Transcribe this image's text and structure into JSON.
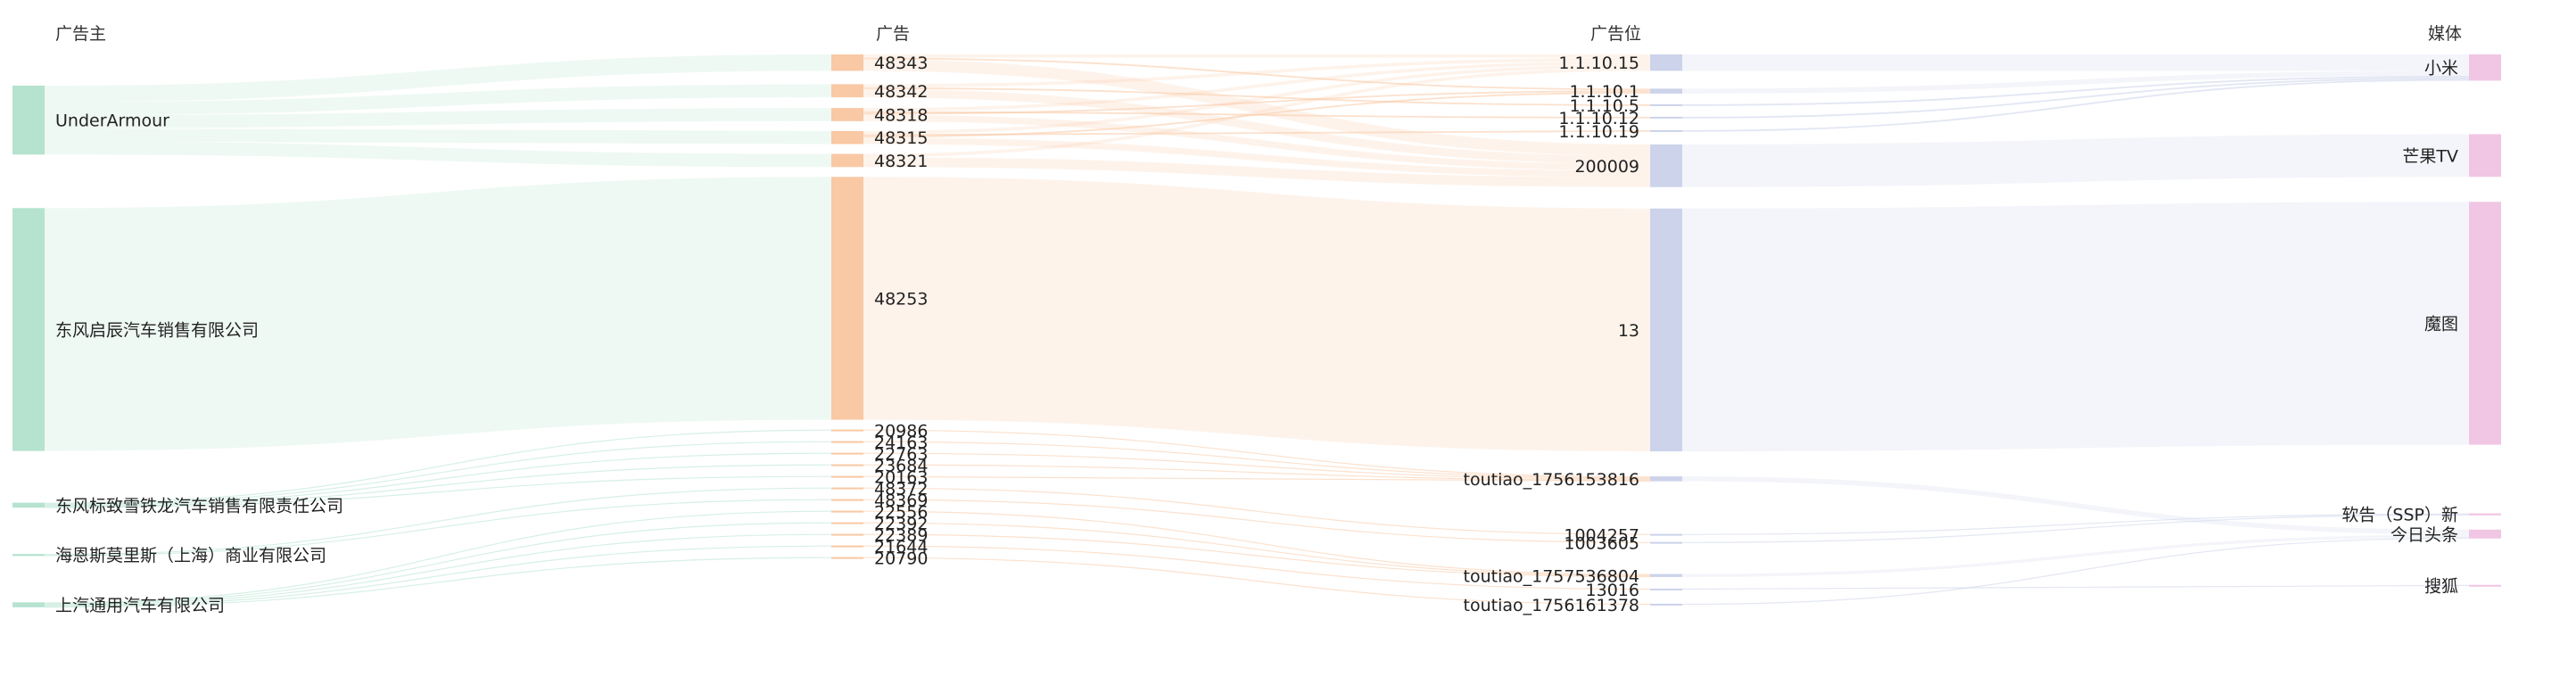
{
  "chart_data": {
    "type": "sankey",
    "title": "",
    "columns": [
      "广告主",
      "广告",
      "广告位",
      "媒体"
    ],
    "colors": {
      "advertiser": "#b5e3cf",
      "ad": "#f9c8a4",
      "slot": "#ccd3ea",
      "media": "#f0c6e4"
    },
    "nodes": [
      {
        "name": "UnderArmour",
        "level": 0
      },
      {
        "name": "东风启辰汽车销售有限公司",
        "level": 0
      },
      {
        "name": "东风标致雪铁龙汽车销售有限责任公司",
        "level": 0
      },
      {
        "name": "海恩斯莫里斯（上海）商业有限公司",
        "level": 0
      },
      {
        "name": "上汽通用汽车有限公司",
        "level": 0
      },
      {
        "name": "48343",
        "level": 1
      },
      {
        "name": "48342",
        "level": 1
      },
      {
        "name": "48318",
        "level": 1
      },
      {
        "name": "48315",
        "level": 1
      },
      {
        "name": "48321",
        "level": 1
      },
      {
        "name": "48253",
        "level": 1
      },
      {
        "name": "20986",
        "level": 1
      },
      {
        "name": "24163",
        "level": 1
      },
      {
        "name": "22763",
        "level": 1
      },
      {
        "name": "23684",
        "level": 1
      },
      {
        "name": "20163",
        "level": 1
      },
      {
        "name": "48372",
        "level": 1
      },
      {
        "name": "48369",
        "level": 1
      },
      {
        "name": "22556",
        "level": 1
      },
      {
        "name": "22392",
        "level": 1
      },
      {
        "name": "22389",
        "level": 1
      },
      {
        "name": "21644",
        "level": 1
      },
      {
        "name": "20790",
        "level": 1
      },
      {
        "name": "1.1.10.15",
        "level": 2
      },
      {
        "name": "1.1.10.1",
        "level": 2
      },
      {
        "name": "1.1.10.5",
        "level": 2
      },
      {
        "name": "1.1.10.12",
        "level": 2
      },
      {
        "name": "1.1.10.19",
        "level": 2
      },
      {
        "name": "200009",
        "level": 2
      },
      {
        "name": "13",
        "level": 2
      },
      {
        "name": "toutiao_1756153816",
        "level": 2
      },
      {
        "name": "1004257",
        "level": 2
      },
      {
        "name": "1003605",
        "level": 2
      },
      {
        "name": "toutiao_1757536804",
        "level": 2
      },
      {
        "name": "13016",
        "level": 2
      },
      {
        "name": "toutiao_1756161378",
        "level": 2
      },
      {
        "name": "小米",
        "level": 3
      },
      {
        "name": "芒果TV",
        "level": 3
      },
      {
        "name": "魔图",
        "level": 3
      },
      {
        "name": "软告（SSP）新",
        "level": 3
      },
      {
        "name": "今日头条",
        "level": 3
      },
      {
        "name": "搜狐",
        "level": 3
      }
    ],
    "links": [
      {
        "source": "UnderArmour",
        "target": "48343",
        "value": 5
      },
      {
        "source": "UnderArmour",
        "target": "48342",
        "value": 4
      },
      {
        "source": "UnderArmour",
        "target": "48318",
        "value": 4
      },
      {
        "source": "UnderArmour",
        "target": "48315",
        "value": 4
      },
      {
        "source": "UnderArmour",
        "target": "48321",
        "value": 4
      },
      {
        "source": "东风启辰汽车销售有限公司",
        "target": "48253",
        "value": 74
      },
      {
        "source": "东风标致雪铁龙汽车销售有限责任公司",
        "target": "20986",
        "value": 0.3
      },
      {
        "source": "东风标致雪铁龙汽车销售有限责任公司",
        "target": "24163",
        "value": 0.3
      },
      {
        "source": "东风标致雪铁龙汽车销售有限责任公司",
        "target": "22763",
        "value": 0.3
      },
      {
        "source": "东风标致雪铁龙汽车销售有限责任公司",
        "target": "23684",
        "value": 0.3
      },
      {
        "source": "东风标致雪铁龙汽车销售有限责任公司",
        "target": "20163",
        "value": 0.3
      },
      {
        "source": "海恩斯莫里斯（上海）商业有限公司",
        "target": "48372",
        "value": 0.3
      },
      {
        "source": "海恩斯莫里斯（上海）商业有限公司",
        "target": "48369",
        "value": 0.3
      },
      {
        "source": "上汽通用汽车有限公司",
        "target": "22556",
        "value": 0.3
      },
      {
        "source": "上汽通用汽车有限公司",
        "target": "22392",
        "value": 0.3
      },
      {
        "source": "上汽通用汽车有限公司",
        "target": "22389",
        "value": 0.3
      },
      {
        "source": "上汽通用汽车有限公司",
        "target": "21644",
        "value": 0.3
      },
      {
        "source": "上汽通用汽车有限公司",
        "target": "20790",
        "value": 0.3
      },
      {
        "source": "48343",
        "target": "1.1.10.15",
        "value": 1
      },
      {
        "source": "48343",
        "target": "1.1.10.1",
        "value": 0.5
      },
      {
        "source": "48343",
        "target": "200009",
        "value": 3.5
      },
      {
        "source": "48342",
        "target": "1.1.10.15",
        "value": 1
      },
      {
        "source": "48342",
        "target": "1.1.10.5",
        "value": 0.5
      },
      {
        "source": "48342",
        "target": "200009",
        "value": 2.5
      },
      {
        "source": "48318",
        "target": "1.1.10.15",
        "value": 1
      },
      {
        "source": "48318",
        "target": "1.1.10.12",
        "value": 0.5
      },
      {
        "source": "48318",
        "target": "1.1.10.1",
        "value": 0.5
      },
      {
        "source": "48318",
        "target": "200009",
        "value": 2
      },
      {
        "source": "48315",
        "target": "1.1.10.15",
        "value": 1
      },
      {
        "source": "48315",
        "target": "1.1.10.19",
        "value": 0.5
      },
      {
        "source": "48315",
        "target": "1.1.10.1",
        "value": 0.5
      },
      {
        "source": "48315",
        "target": "200009",
        "value": 2
      },
      {
        "source": "48321",
        "target": "1.1.10.15",
        "value": 1
      },
      {
        "source": "48321",
        "target": "200009",
        "value": 3
      },
      {
        "source": "48253",
        "target": "13",
        "value": 74
      },
      {
        "source": "20986",
        "target": "toutiao_1756153816",
        "value": 0.3
      },
      {
        "source": "24163",
        "target": "toutiao_1756153816",
        "value": 0.3
      },
      {
        "source": "22763",
        "target": "toutiao_1756153816",
        "value": 0.3
      },
      {
        "source": "23684",
        "target": "toutiao_1756153816",
        "value": 0.3
      },
      {
        "source": "20163",
        "target": "toutiao_1756153816",
        "value": 0.3
      },
      {
        "source": "48372",
        "target": "1004257",
        "value": 0.3
      },
      {
        "source": "48369",
        "target": "1003605",
        "value": 0.3
      },
      {
        "source": "22556",
        "target": "toutiao_1757536804",
        "value": 0.3
      },
      {
        "source": "22392",
        "target": "toutiao_1757536804",
        "value": 0.3
      },
      {
        "source": "22389",
        "target": "toutiao_1757536804",
        "value": 0.3
      },
      {
        "source": "21644",
        "target": "13016",
        "value": 0.3
      },
      {
        "source": "20790",
        "target": "toutiao_1756161378",
        "value": 0.3
      },
      {
        "source": "1.1.10.15",
        "target": "小米",
        "value": 5
      },
      {
        "source": "1.1.10.1",
        "target": "小米",
        "value": 1.5
      },
      {
        "source": "1.1.10.5",
        "target": "小米",
        "value": 0.5
      },
      {
        "source": "1.1.10.12",
        "target": "小米",
        "value": 0.5
      },
      {
        "source": "1.1.10.19",
        "target": "小米",
        "value": 0.5
      },
      {
        "source": "200009",
        "target": "芒果TV",
        "value": 13
      },
      {
        "source": "13",
        "target": "魔图",
        "value": 74
      },
      {
        "source": "toutiao_1756153816",
        "target": "今日头条",
        "value": 1.5
      },
      {
        "source": "1004257",
        "target": "软告（SSP）新",
        "value": 0.3
      },
      {
        "source": "1003605",
        "target": "软告（SSP）新",
        "value": 0.3
      },
      {
        "source": "toutiao_1757536804",
        "target": "今日头条",
        "value": 0.9
      },
      {
        "source": "13016",
        "target": "搜狐",
        "value": 0.3
      },
      {
        "source": "toutiao_1756161378",
        "target": "今日头条",
        "value": 0.3
      }
    ]
  }
}
